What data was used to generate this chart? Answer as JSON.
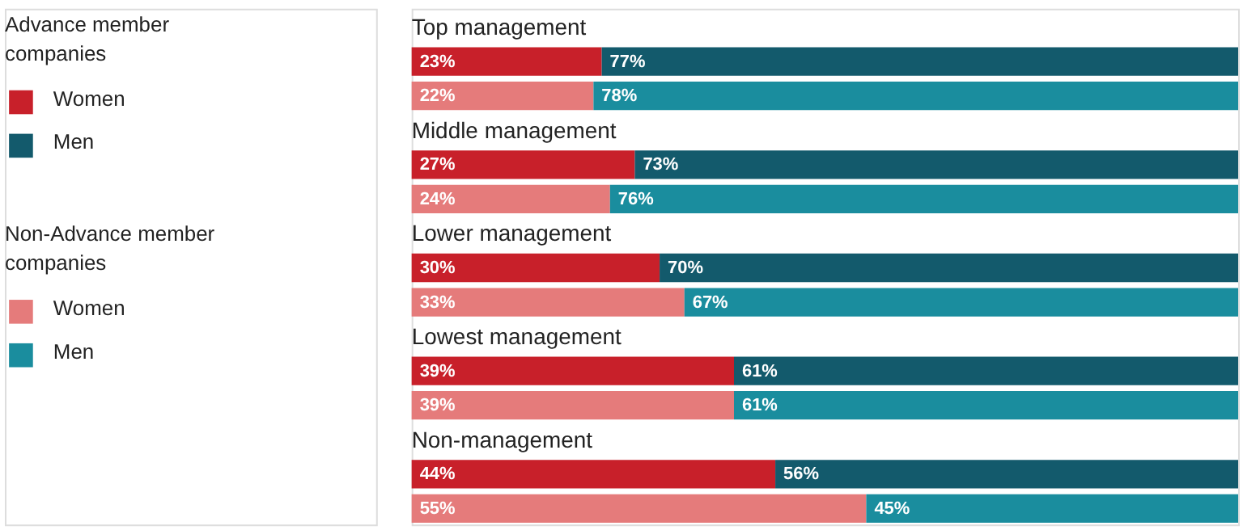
{
  "chart_data": {
    "type": "bar",
    "orientation": "horizontal",
    "stacked": true,
    "legend": "left",
    "tick_labels": false,
    "xlim": [
      0,
      100
    ],
    "categories": [
      "Top management",
      null,
      "Middle management",
      null,
      "Lower management",
      null,
      "Lowest management",
      null,
      "Non-management",
      null
    ],
    "annotations": [
      "Advance member companies",
      "Non-Advance member companies"
    ],
    "series": [
      {
        "name": "Women",
        "color": "#c8202a",
        "values": [
          23,
          null,
          27,
          null,
          30,
          null,
          39,
          null,
          44,
          null
        ],
        "value_labels": [
          "23%",
          null,
          "27%",
          null,
          "30%",
          null,
          "39%",
          null,
          "44%",
          null
        ]
      },
      {
        "name": "Men",
        "color": "#135a6c",
        "values": [
          77,
          null,
          73,
          null,
          70,
          null,
          61,
          null,
          56,
          null
        ],
        "value_labels": [
          "77%",
          null,
          "73%",
          null,
          "70%",
          null,
          "61%",
          null,
          "56%",
          null
        ]
      },
      {
        "name": "Women",
        "color": "#e57b7b",
        "values": [
          null,
          22,
          null,
          24,
          null,
          33,
          null,
          39,
          null,
          55
        ],
        "value_labels": [
          null,
          "22%",
          null,
          "24%",
          null,
          "33%",
          null,
          "39%",
          null,
          "55%"
        ]
      },
      {
        "name": "Men",
        "color": "#1a8d9e",
        "values": [
          null,
          78,
          null,
          76,
          null,
          67,
          null,
          61,
          null,
          45
        ],
        "value_labels": [
          null,
          "78%",
          null,
          "76%",
          null,
          "67%",
          null,
          "61%",
          null,
          "45%"
        ]
      }
    ]
  }
}
